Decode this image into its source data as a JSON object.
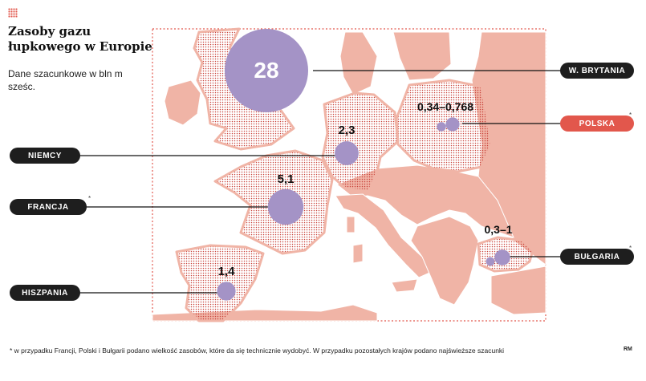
{
  "title": "Zasoby gazu łupkowego w Europie",
  "subtitle": "Dane szacunkowe w bln m sześc.",
  "footnote": "* w przypadku Francji, Polski i Bułgarii podano wielkość zasobów, które da się technicznie wydobyć. W przypadku pozostałych krajów podano najświeższe szacunki",
  "credit": "RM",
  "footnote_marker": "*",
  "colors": {
    "land": "#f0b4a6",
    "highlight_dots": "#c9443b",
    "bubble": "#a493c6",
    "accent_red": "#e2574c",
    "label_dark": "#1e1e1e"
  },
  "countries": [
    {
      "id": "uk",
      "label": "W. BRYTANIA",
      "value": "28",
      "value_num": 28,
      "starred": false,
      "label_style": "dark"
    },
    {
      "id": "de",
      "label": "NIEMCY",
      "value": "2,3",
      "value_num": 2.3,
      "starred": false,
      "label_style": "dark"
    },
    {
      "id": "fr",
      "label": "FRANCJA",
      "value": "5,1",
      "value_num": 5.1,
      "starred": true,
      "label_style": "dark"
    },
    {
      "id": "es",
      "label": "HISZPANIA",
      "value": "1,4",
      "value_num": 1.4,
      "starred": false,
      "label_style": "dark"
    },
    {
      "id": "pl",
      "label": "POLSKA",
      "value": "0,34–0,768",
      "value_num": [
        0.34,
        0.768
      ],
      "starred": true,
      "label_style": "red"
    },
    {
      "id": "bg",
      "label": "BUŁGARIA",
      "value": "0,3–1",
      "value_num": [
        0.3,
        1
      ],
      "starred": true,
      "label_style": "dark"
    }
  ]
}
